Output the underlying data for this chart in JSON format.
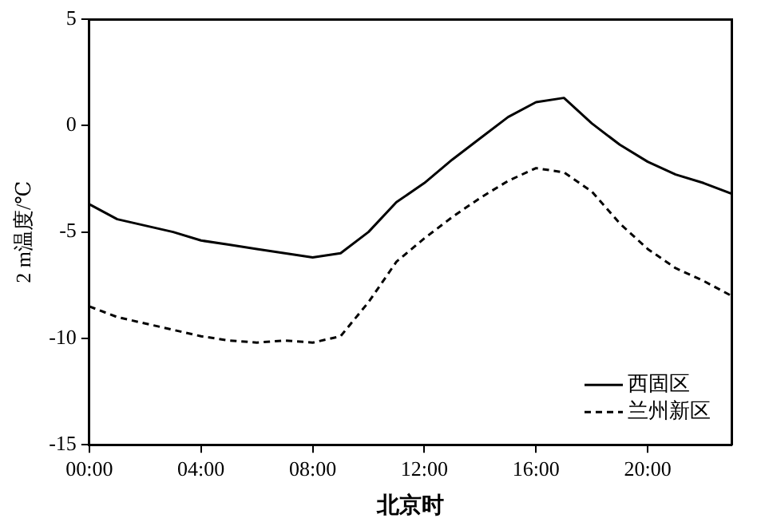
{
  "chart_data": {
    "type": "line",
    "xlabel": "北京时",
    "ylabel": "2 m温度/℃",
    "x": [
      0,
      1,
      2,
      3,
      4,
      5,
      6,
      7,
      8,
      9,
      10,
      11,
      12,
      13,
      14,
      15,
      16,
      17,
      18,
      19,
      20,
      21,
      22,
      23
    ],
    "xlim": [
      0,
      23
    ],
    "xticks": [
      {
        "value": 0,
        "label": "00:00"
      },
      {
        "value": 4,
        "label": "04:00"
      },
      {
        "value": 8,
        "label": "08:00"
      },
      {
        "value": 12,
        "label": "12:00"
      },
      {
        "value": 16,
        "label": "16:00"
      },
      {
        "value": 20,
        "label": "20:00"
      }
    ],
    "ylim": [
      -15,
      5
    ],
    "yticks": [
      -15,
      -10,
      -5,
      0,
      5
    ],
    "series": [
      {
        "name": "西固区",
        "color": "#000000",
        "line_style": "solid",
        "values": [
          -3.7,
          -4.4,
          -4.7,
          -5.0,
          -5.4,
          -5.6,
          -5.8,
          -6.0,
          -6.2,
          -6.0,
          -5.0,
          -3.6,
          -2.7,
          -1.6,
          -0.6,
          0.4,
          1.1,
          1.3,
          0.1,
          -0.9,
          -1.7,
          -2.3,
          -2.7,
          -3.2
        ]
      },
      {
        "name": "兰州新区",
        "color": "#000000",
        "line_style": "dashed",
        "values": [
          -8.5,
          -9.0,
          -9.3,
          -9.6,
          -9.9,
          -10.1,
          -10.2,
          -10.1,
          -10.2,
          -9.9,
          -8.3,
          -6.4,
          -5.3,
          -4.3,
          -3.4,
          -2.6,
          -2.0,
          -2.2,
          -3.1,
          -4.6,
          -5.8,
          -6.7,
          -7.3,
          -8.0
        ]
      }
    ],
    "legend": "bottom right",
    "grid": false,
    "marker": "none"
  }
}
